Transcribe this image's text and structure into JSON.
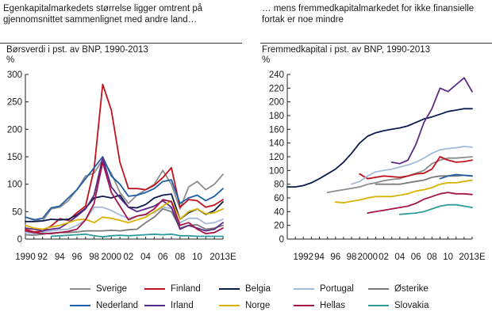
{
  "left_panel": {
    "caption": "Egenkapitalmarkedets  størrelse ligger omtrent  på\ngjennomsnittet  sammenlignet med andre land…",
    "title": "Børsverdi i pst. av BNP, 1990-2013",
    "unit": "%"
  },
  "right_panel": {
    "caption": "… mens fremmedkapitalmarkedet   for  ikke  finansielle\nfortak  er  noe mindre",
    "title": "Fremmedkapital i pst. av BNP, 1990-2013",
    "unit": "%"
  },
  "legend": [
    {
      "name": "Sverige",
      "color": "#8c8c8c"
    },
    {
      "name": "Finland",
      "color": "#c0121c"
    },
    {
      "name": "Belgia",
      "color": "#0b1b4d"
    },
    {
      "name": "Portugal",
      "color": "#a3badb"
    },
    {
      "name": "Østerike",
      "color": "#7a7a7a"
    },
    {
      "name": "Nederland",
      "color": "#1f5fa8"
    },
    {
      "name": "Irland",
      "color": "#5b2a86"
    },
    {
      "name": "Norge",
      "color": "#d9b300"
    },
    {
      "name": "Hellas",
      "color": "#a3154a"
    },
    {
      "name": "Slovakia",
      "color": "#2f9a9a"
    }
  ],
  "chart_data": [
    {
      "type": "line",
      "title": "Børsverdi i pst. av BNP, 1990-2013",
      "ylabel": "%",
      "ylim": [
        0,
        300
      ],
      "yticks": [
        0,
        50,
        100,
        150,
        200,
        250,
        300
      ],
      "xlim": [
        1990,
        2013
      ],
      "xtick_labels": [
        "1990",
        "92",
        "94",
        "96",
        "98",
        "2000",
        "02",
        "04",
        "06",
        "08",
        "10",
        "2013E"
      ],
      "xtick_years": [
        1990,
        1992,
        1994,
        1996,
        1998,
        2000,
        2002,
        2004,
        2006,
        2008,
        2010,
        2013
      ],
      "x": [
        1990,
        1991,
        1992,
        1993,
        1994,
        1995,
        1996,
        1997,
        1998,
        1999,
        2000,
        2001,
        2002,
        2003,
        2004,
        2005,
        2006,
        2007,
        2008,
        2009,
        2010,
        2011,
        2012,
        2013
      ],
      "series": [
        {
          "name": "Sverige",
          "color": "#8c8c8c",
          "values": [
            40,
            36,
            33,
            55,
            58,
            70,
            90,
            115,
            120,
            145,
            120,
            85,
            65,
            80,
            90,
            100,
            125,
            100,
            55,
            95,
            105,
            90,
            100,
            118
          ]
        },
        {
          "name": "Finland",
          "color": "#c0121c",
          "values": [
            18,
            13,
            14,
            24,
            37,
            34,
            48,
            60,
            128,
            282,
            235,
            140,
            92,
            92,
            90,
            98,
            112,
            130,
            58,
            72,
            70,
            58,
            62,
            72
          ]
        },
        {
          "name": "Belgia",
          "color": "#0b1b4d",
          "values": [
            32,
            32,
            33,
            36,
            35,
            36,
            44,
            56,
            75,
            78,
            75,
            80,
            58,
            57,
            63,
            75,
            80,
            82,
            36,
            48,
            55,
            45,
            52,
            68
          ]
        },
        {
          "name": "Portugal",
          "color": "#a3badb",
          "values": [
            12,
            10,
            12,
            15,
            17,
            18,
            25,
            35,
            58,
            58,
            52,
            44,
            38,
            42,
            44,
            48,
            58,
            56,
            30,
            38,
            38,
            28,
            30,
            36
          ]
        },
        {
          "name": "Østerike",
          "color": "#7a7a7a",
          "values": [
            8,
            7,
            9,
            11,
            12,
            12,
            13,
            15,
            15,
            15,
            16,
            15,
            17,
            18,
            30,
            40,
            55,
            50,
            20,
            25,
            26,
            18,
            20,
            25
          ]
        },
        {
          "name": "Nederland",
          "color": "#1f5fa8",
          "values": [
            40,
            35,
            38,
            57,
            60,
            75,
            90,
            110,
            130,
            150,
            115,
            100,
            78,
            80,
            85,
            92,
            105,
            108,
            65,
            75,
            80,
            70,
            78,
            92
          ]
        },
        {
          "name": "Irland",
          "color": "#5b2a86",
          "values": [
            20,
            18,
            15,
            18,
            20,
            30,
            42,
            55,
            80,
            148,
            95,
            75,
            58,
            50,
            55,
            60,
            70,
            58,
            18,
            25,
            20,
            15,
            18,
            30
          ]
        },
        {
          "name": "Norge",
          "color": "#d9b300",
          "values": [
            25,
            20,
            18,
            22,
            25,
            30,
            35,
            36,
            30,
            40,
            38,
            34,
            30,
            35,
            40,
            50,
            60,
            70,
            36,
            50,
            55,
            46,
            48,
            55
          ]
        },
        {
          "name": "Hellas",
          "color": "#a3154a",
          "values": [
            15,
            12,
            10,
            10,
            12,
            14,
            18,
            35,
            65,
            140,
            85,
            60,
            35,
            42,
            45,
            55,
            72,
            68,
            25,
            30,
            18,
            10,
            12,
            20
          ]
        },
        {
          "name": "Slovakia",
          "color": "#2f9a9a",
          "values": [
            null,
            null,
            null,
            5,
            6,
            7,
            8,
            9,
            6,
            4,
            6,
            7,
            6,
            7,
            8,
            9,
            8,
            9,
            6,
            6,
            5,
            5,
            5,
            5
          ]
        }
      ]
    },
    {
      "type": "line",
      "title": "Fremmedkapital i pst. av BNP, 1990-2013",
      "ylabel": "%",
      "ylim": [
        0,
        240
      ],
      "yticks": [
        0,
        20,
        40,
        60,
        80,
        100,
        120,
        140,
        160,
        180,
        200,
        220,
        240
      ],
      "xlim": [
        1990,
        2013
      ],
      "xtick_labels": [
        "1992",
        "94",
        "96",
        "98",
        "2000",
        "02",
        "04",
        "06",
        "08",
        "10",
        "2013E"
      ],
      "xtick_years": [
        1992,
        1994,
        1996,
        1998,
        2000,
        2002,
        2004,
        2006,
        2008,
        2010,
        2013
      ],
      "x": [
        1990,
        1991,
        1992,
        1993,
        1994,
        1995,
        1996,
        1997,
        1998,
        1999,
        2000,
        2001,
        2002,
        2003,
        2004,
        2005,
        2006,
        2007,
        2008,
        2009,
        2010,
        2011,
        2012,
        2013
      ],
      "series": [
        {
          "name": "Sverige",
          "color": "#8c8c8c",
          "values": [
            null,
            null,
            null,
            null,
            null,
            68,
            70,
            72,
            74,
            76,
            80,
            82,
            85,
            87,
            88,
            92,
            96,
            100,
            110,
            115,
            118,
            118,
            119,
            120
          ]
        },
        {
          "name": "Finland",
          "color": "#c0121c",
          "values": [
            null,
            null,
            null,
            null,
            null,
            null,
            null,
            null,
            null,
            95,
            88,
            90,
            92,
            91,
            90,
            92,
            95,
            96,
            102,
            120,
            115,
            112,
            113,
            115
          ]
        },
        {
          "name": "Belgia",
          "color": "#0b1b4d",
          "values": [
            76,
            76,
            78,
            82,
            88,
            95,
            102,
            112,
            125,
            140,
            150,
            155,
            158,
            160,
            162,
            165,
            170,
            175,
            178,
            182,
            186,
            188,
            190,
            190
          ]
        },
        {
          "name": "Portugal",
          "color": "#a3badb",
          "values": [
            null,
            null,
            null,
            null,
            null,
            null,
            null,
            null,
            80,
            84,
            92,
            98,
            100,
            102,
            105,
            108,
            112,
            118,
            125,
            130,
            132,
            133,
            135,
            134
          ]
        },
        {
          "name": "Østerike",
          "color": "#7a7a7a",
          "values": [
            null,
            null,
            null,
            null,
            null,
            null,
            null,
            null,
            null,
            null,
            null,
            80,
            80,
            80,
            80,
            82,
            84,
            86,
            90,
            92,
            92,
            92,
            93,
            92
          ]
        },
        {
          "name": "Nederland",
          "color": "#1f5fa8",
          "values": [
            null,
            null,
            null,
            null,
            null,
            null,
            null,
            null,
            null,
            null,
            null,
            null,
            null,
            null,
            null,
            null,
            null,
            null,
            null,
            88,
            92,
            94,
            93,
            92
          ]
        },
        {
          "name": "Irland",
          "color": "#5b2a86",
          "values": [
            null,
            null,
            null,
            null,
            null,
            null,
            null,
            null,
            null,
            null,
            null,
            null,
            null,
            112,
            110,
            115,
            138,
            170,
            190,
            220,
            215,
            225,
            235,
            215
          ]
        },
        {
          "name": "Norge",
          "color": "#d9b300",
          "values": [
            null,
            null,
            null,
            null,
            null,
            null,
            54,
            53,
            55,
            57,
            60,
            62,
            62,
            62,
            64,
            66,
            70,
            72,
            75,
            80,
            82,
            82,
            84,
            86
          ]
        },
        {
          "name": "Hellas",
          "color": "#a3154a",
          "values": [
            null,
            null,
            null,
            null,
            null,
            null,
            null,
            null,
            null,
            null,
            38,
            40,
            42,
            44,
            46,
            48,
            52,
            58,
            62,
            66,
            68,
            66,
            66,
            65
          ]
        },
        {
          "name": "Slovakia",
          "color": "#2f9a9a",
          "values": [
            null,
            null,
            null,
            null,
            null,
            null,
            null,
            null,
            null,
            null,
            null,
            null,
            null,
            null,
            36,
            37,
            38,
            40,
            44,
            48,
            50,
            50,
            48,
            46
          ]
        }
      ]
    }
  ]
}
